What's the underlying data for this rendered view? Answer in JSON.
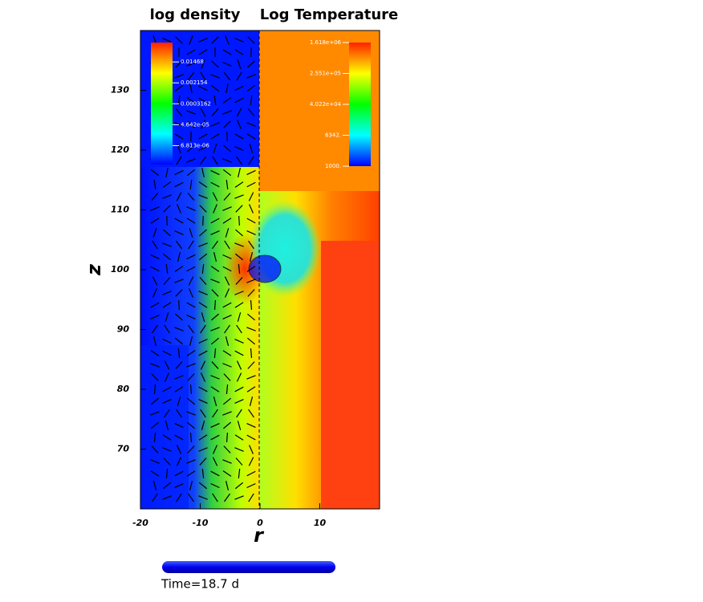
{
  "chart_data": {
    "type": "image",
    "titles": [
      "log density",
      "Log Temperature"
    ],
    "xlabel": "r",
    "ylabel": "z",
    "xlim": [
      -20,
      20
    ],
    "ylim": [
      60,
      140
    ],
    "xticks": [
      -20,
      -10,
      0,
      10
    ],
    "yticks": [
      70,
      80,
      90,
      100,
      110,
      120,
      130
    ],
    "colorbars": [
      {
        "clim": [
          1.2e-06,
          0.087
        ],
        "log": true,
        "ticks": [
          {
            "value": 0.01468,
            "label": "0.01468"
          },
          {
            "value": 0.002154,
            "label": "0.002154"
          },
          {
            "value": 0.0003162,
            "label": "0.0003162"
          },
          {
            "value": 4.642e-05,
            "label": "4.642e-05"
          },
          {
            "value": 6.813e-06,
            "label": "6.813e-06"
          }
        ]
      },
      {
        "clim": [
          1000,
          1618000
        ],
        "log": true,
        "ticks": [
          {
            "value": 1618000,
            "label": "1.618e+06"
          },
          {
            "value": 255100,
            "label": "2.551e+05"
          },
          {
            "value": 40220,
            "label": "4.022e+04"
          },
          {
            "value": 6342,
            "label": "6342."
          },
          {
            "value": 1000,
            "label": "1000."
          }
        ]
      }
    ],
    "time": "Time=18.7 d"
  }
}
